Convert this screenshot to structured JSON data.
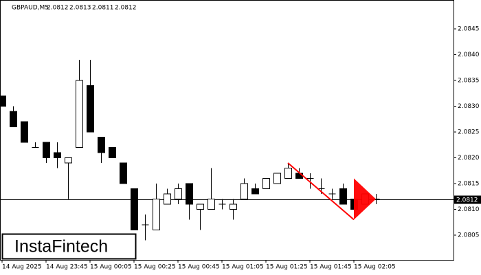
{
  "chart_data": {
    "type": "candlestick",
    "title": "GBPAUD,M5",
    "last_bar": [
      2.0812,
      2.0813,
      2.0811,
      2.0812
    ],
    "categories": [
      "14 Aug 2025",
      null,
      null,
      null,
      "14 Aug 23:45",
      null,
      null,
      null,
      "15 Aug 00:05",
      null,
      null,
      null,
      "15 Aug 00:25",
      null,
      null,
      null,
      "15 Aug 00:45",
      null,
      null,
      null,
      "15 Aug 01:05",
      null,
      null,
      null,
      "15 Aug 01:25",
      null,
      null,
      null,
      "15 Aug 01:45",
      null,
      null,
      null,
      "15 Aug 02:05",
      null,
      null
    ],
    "open": [
      2.0832,
      2.0829,
      2.0827,
      2.0822,
      2.0823,
      2.0821,
      2.0819,
      2.0822,
      2.0834,
      2.0824,
      2.0822,
      2.0819,
      2.0814,
      2.0807,
      2.0806,
      2.0811,
      2.0812,
      2.0815,
      2.081,
      2.081,
      2.0811,
      2.081,
      2.0812,
      2.0814,
      2.0814,
      2.0815,
      2.0816,
      2.0817,
      2.0816,
      2.0814,
      2.0813,
      2.0814,
      2.0812,
      2.0811,
      2.0812
    ],
    "high": [
      2.0832,
      2.083,
      2.0827,
      2.0823,
      2.0823,
      2.0823,
      2.082,
      2.0839,
      2.0839,
      2.0824,
      2.0822,
      2.0819,
      2.0814,
      2.0809,
      2.0815,
      2.0814,
      2.0815,
      2.0815,
      2.0811,
      2.0818,
      2.0812,
      2.0812,
      2.0816,
      2.0815,
      2.0816,
      2.0817,
      2.0819,
      2.0818,
      2.0817,
      2.0816,
      2.0814,
      2.0815,
      2.0812,
      2.0813,
      2.0813
    ],
    "low": [
      2.083,
      2.0826,
      2.0823,
      2.0822,
      2.0819,
      2.0818,
      2.0812,
      2.0822,
      2.0825,
      2.0819,
      2.082,
      2.0815,
      2.0806,
      2.0804,
      2.0806,
      2.0811,
      2.0811,
      2.0808,
      2.0806,
      2.081,
      2.081,
      2.0808,
      2.0812,
      2.0813,
      2.0814,
      2.0815,
      2.0816,
      2.0816,
      2.0814,
      2.0813,
      2.0812,
      2.0811,
      2.0809,
      2.0811,
      2.0811
    ],
    "close": [
      2.083,
      2.0826,
      2.0823,
      2.0822,
      2.082,
      2.082,
      2.082,
      2.0835,
      2.0825,
      2.0821,
      2.082,
      2.0815,
      2.0806,
      2.0807,
      2.0812,
      2.0813,
      2.0814,
      2.0811,
      2.0811,
      2.0812,
      2.0811,
      2.0811,
      2.0815,
      2.0813,
      2.0816,
      2.0817,
      2.0818,
      2.0816,
      2.0816,
      2.0814,
      2.0813,
      2.0811,
      2.081,
      2.0813,
      2.0812
    ],
    "up_color": "#ffffff",
    "down_color": "#000000",
    "bid": 2.0812,
    "ylim": [
      2.08002,
      2.08506
    ],
    "yticks": [
      2.0805,
      {
        "value": 2.081,
        "label": "2.0810"
      },
      2.0815,
      {
        "value": 2.082,
        "label": "2.0820"
      },
      2.0825,
      {
        "value": 2.083,
        "label": "2.0830"
      },
      2.0835,
      {
        "value": 2.084,
        "label": "2.0840"
      },
      2.0845
    ],
    "pattern": {
      "color": "#ff0000",
      "pole": {
        "x": [
          26,
          32
        ],
        "y": [
          2.0819,
          2.0808
        ]
      },
      "flag": {
        "x": [
          32,
          32,
          34
        ],
        "y": [
          2.0816,
          2.0808,
          2.0812
        ]
      }
    },
    "logo": "InstaFintech"
  }
}
